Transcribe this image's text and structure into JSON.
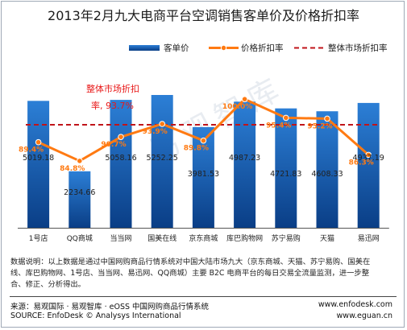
{
  "title": "2013年2月九大电商平台空调销售客单价及价格折扣率",
  "watermark": "易观智库",
  "chart_data": {
    "type": "bar",
    "categories": [
      "1号店",
      "QQ商城",
      "当当网",
      "国美在线",
      "京东商城",
      "库巴购物网",
      "苏宁易购",
      "天猫",
      "易迅网"
    ],
    "series": [
      {
        "name": "客单价",
        "kind": "bar",
        "values": [
          5019.18,
          2234.66,
          5058.16,
          5252.25,
          3981.53,
          4987.23,
          4721.83,
          4608.33,
          4937.19
        ],
        "labels": [
          "5019.18",
          "2234.66",
          "5058.16",
          "5252.25",
          "3981.53",
          "4987.23",
          "4721.83",
          "4608.33",
          "4937.19"
        ]
      },
      {
        "name": "价格折扣率",
        "kind": "line",
        "values": [
          89.4,
          84.8,
          90.7,
          93.9,
          89.8,
          100.0,
          95.4,
          95.2,
          86.3
        ],
        "labels": [
          "89.4%",
          "84.8%",
          "90.7%",
          "93.9%",
          "89.8%",
          "100.0%",
          "95.4%",
          "95.2%",
          "86.3%"
        ]
      },
      {
        "name": "整体市场折扣率",
        "kind": "reference",
        "value": 93.7
      }
    ],
    "annotation": {
      "line1": "整体市场折扣",
      "line2": "率, 93.7%"
    },
    "colors": {
      "bar_top": "#2c7fd6",
      "bar_bottom": "#0a3e86",
      "line": "#ff7a12",
      "reference": "#c0141a"
    },
    "legend_position": "top",
    "grid": false
  },
  "notes": {
    "line1": "数据说明：以上数据是通过中国网购商品行情系统对中国大陆市场九大（京东商城、天猫、苏宁易购、国美在",
    "line2": "线、库巴购物网、1号店、当当网、易迅网、QQ商城）主要 B2C 电商平台的每日交易全流量监测，进一步整",
    "line3": "合、修正、分析得出。"
  },
  "source": {
    "cn": "来源：易观国际 · 易观智库 · eOSS 中国网购商品行情系统",
    "en": "SOURCE: EnfoDesk © Analysys International",
    "site1": "www.enfodesk.com",
    "site2": "www.eguan.cn"
  }
}
